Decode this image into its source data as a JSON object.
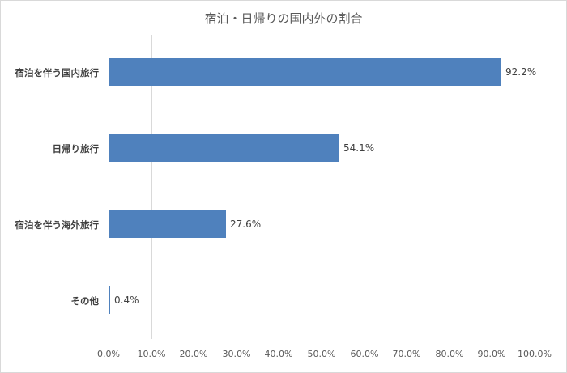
{
  "chart_data": {
    "type": "bar",
    "orientation": "horizontal",
    "title": "宿泊・日帰りの国内外の割合",
    "categories": [
      "宿泊を伴う国内旅行",
      "日帰り旅行",
      "宿泊を伴う海外旅行",
      "その他"
    ],
    "values": [
      92.2,
      54.1,
      27.6,
      0.4
    ],
    "value_labels": [
      "92.2%",
      "54.1%",
      "27.6%",
      "0.4%"
    ],
    "xlabel": "",
    "ylabel": "",
    "xlim": [
      0,
      100
    ],
    "x_ticks": [
      "0.0%",
      "10.0%",
      "20.0%",
      "30.0%",
      "40.0%",
      "50.0%",
      "60.0%",
      "70.0%",
      "80.0%",
      "90.0%",
      "100.0%"
    ],
    "grid": "vertical",
    "legend": "none",
    "bar_color": "#4f81bd"
  }
}
